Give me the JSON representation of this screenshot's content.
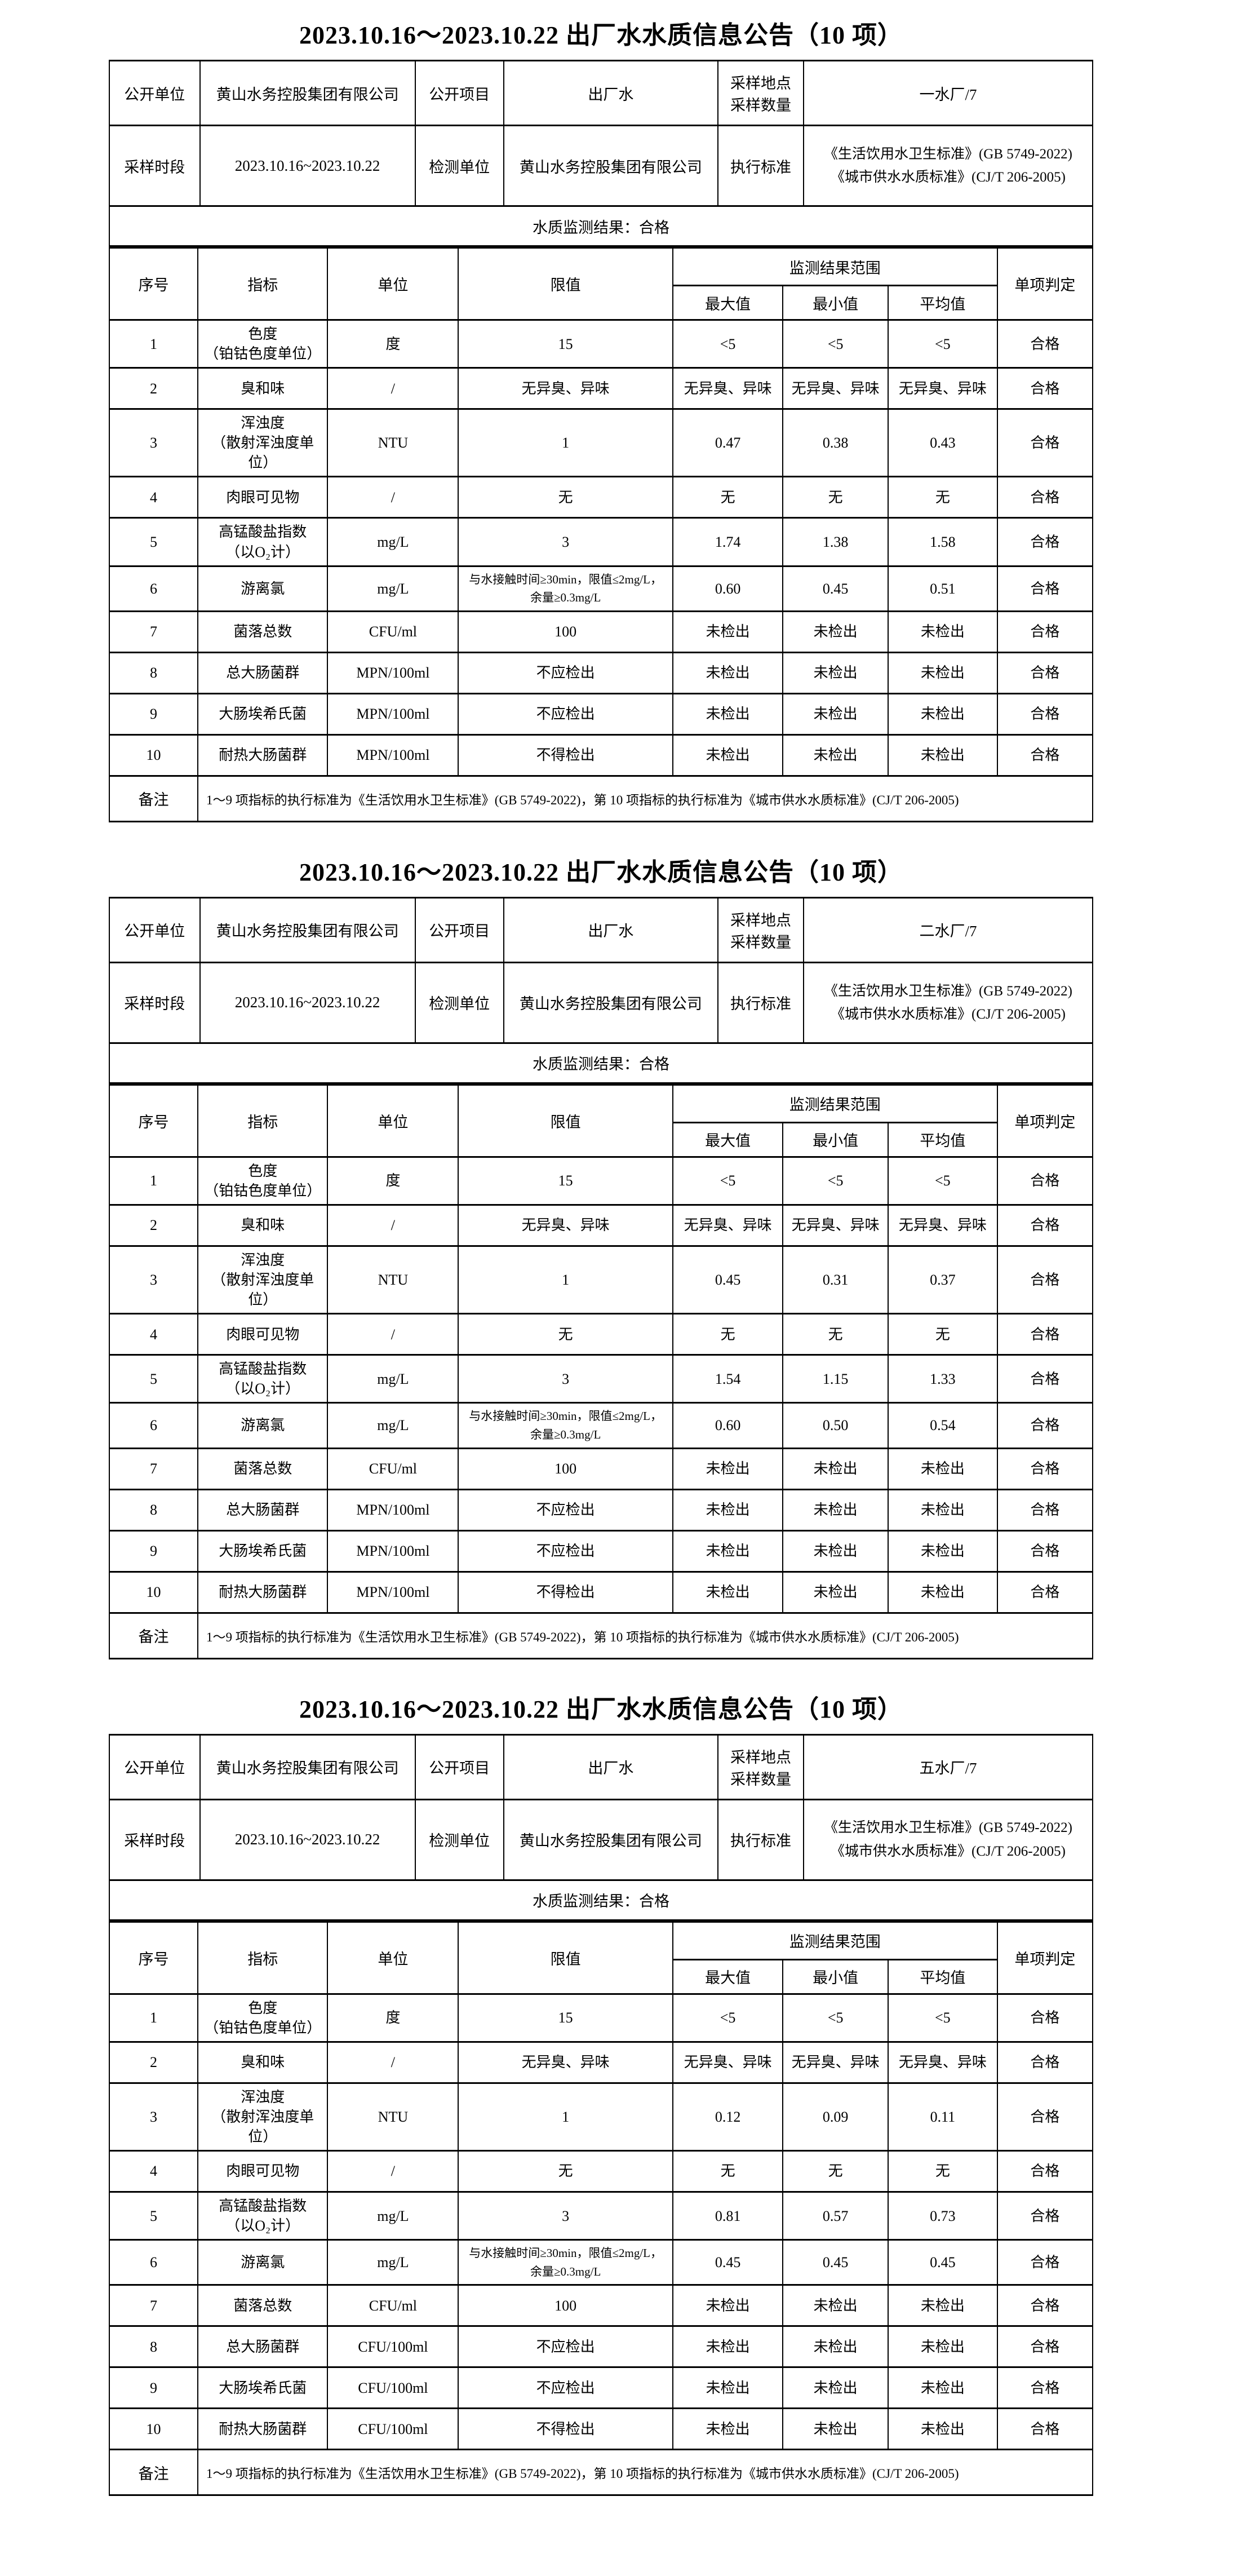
{
  "common": {
    "title": "2023.10.16～2023.10.22 出厂水水质信息公告（10 项）",
    "labels": {
      "publish_unit": "公开单位",
      "publish_item": "公开项目",
      "sampling_site": "采样地点\n采样数量",
      "sampling_period": "采样时段",
      "test_unit": "检测单位",
      "standard": "执行标准",
      "remark": "备注",
      "seq": "序号",
      "indicator": "指标",
      "unit": "单位",
      "limit": "限值",
      "result_range": "监测结果范围",
      "max": "最大值",
      "min": "最小值",
      "avg": "平均值",
      "judge": "单项判定"
    },
    "values": {
      "publish_unit": "黄山水务控股集团有限公司",
      "publish_item": "出厂水",
      "sampling_period": "2023.10.16~2023.10.22",
      "test_unit": "黄山水务控股集团有限公司",
      "standard": "《生活饮用水卫生标准》(GB 5749-2022)\n《城市供水水质标准》(CJ/T 206-2005)",
      "result_line": "水质监测结果：合格",
      "remark": "1～9 项指标的执行标准为《生活饮用水卫生标准》(GB 5749-2022)，第 10 项指标的执行标准为《城市供水水质标准》(CJ/T 206-2005)"
    }
  },
  "tables": [
    {
      "sampling_site": "一水厂/7",
      "rows": [
        [
          "1",
          "色度\n（铂钴色度单位）",
          "度",
          "15",
          "<5",
          "<5",
          "<5",
          "合格"
        ],
        [
          "2",
          "臭和味",
          "/",
          "无异臭、异味",
          "无异臭、异味",
          "无异臭、异味",
          "无异臭、异味",
          "合格"
        ],
        [
          "3",
          "浑浊度\n（散射浑浊度单位）",
          "NTU",
          "1",
          "0.47",
          "0.38",
          "0.43",
          "合格"
        ],
        [
          "4",
          "肉眼可见物",
          "/",
          "无",
          "无",
          "无",
          "无",
          "合格"
        ],
        [
          "5",
          "高锰酸盐指数\n（以O₂计）",
          "mg/L",
          "3",
          "1.74",
          "1.38",
          "1.58",
          "合格"
        ],
        [
          "6",
          "游离氯",
          "mg/L",
          "与水接触时间≥30min，限值≤2mg/L，余量≥0.3mg/L",
          "0.60",
          "0.45",
          "0.51",
          "合格"
        ],
        [
          "7",
          "菌落总数",
          "CFU/ml",
          "100",
          "未检出",
          "未检出",
          "未检出",
          "合格"
        ],
        [
          "8",
          "总大肠菌群",
          "MPN/100ml",
          "不应检出",
          "未检出",
          "未检出",
          "未检出",
          "合格"
        ],
        [
          "9",
          "大肠埃希氏菌",
          "MPN/100ml",
          "不应检出",
          "未检出",
          "未检出",
          "未检出",
          "合格"
        ],
        [
          "10",
          "耐热大肠菌群",
          "MPN/100ml",
          "不得检出",
          "未检出",
          "未检出",
          "未检出",
          "合格"
        ]
      ]
    },
    {
      "sampling_site": "二水厂/7",
      "rows": [
        [
          "1",
          "色度\n（铂钴色度单位）",
          "度",
          "15",
          "<5",
          "<5",
          "<5",
          "合格"
        ],
        [
          "2",
          "臭和味",
          "/",
          "无异臭、异味",
          "无异臭、异味",
          "无异臭、异味",
          "无异臭、异味",
          "合格"
        ],
        [
          "3",
          "浑浊度\n（散射浑浊度单位）",
          "NTU",
          "1",
          "0.45",
          "0.31",
          "0.37",
          "合格"
        ],
        [
          "4",
          "肉眼可见物",
          "/",
          "无",
          "无",
          "无",
          "无",
          "合格"
        ],
        [
          "5",
          "高锰酸盐指数\n（以O₂计）",
          "mg/L",
          "3",
          "1.54",
          "1.15",
          "1.33",
          "合格"
        ],
        [
          "6",
          "游离氯",
          "mg/L",
          "与水接触时间≥30min，限值≤2mg/L，余量≥0.3mg/L",
          "0.60",
          "0.50",
          "0.54",
          "合格"
        ],
        [
          "7",
          "菌落总数",
          "CFU/ml",
          "100",
          "未检出",
          "未检出",
          "未检出",
          "合格"
        ],
        [
          "8",
          "总大肠菌群",
          "MPN/100ml",
          "不应检出",
          "未检出",
          "未检出",
          "未检出",
          "合格"
        ],
        [
          "9",
          "大肠埃希氏菌",
          "MPN/100ml",
          "不应检出",
          "未检出",
          "未检出",
          "未检出",
          "合格"
        ],
        [
          "10",
          "耐热大肠菌群",
          "MPN/100ml",
          "不得检出",
          "未检出",
          "未检出",
          "未检出",
          "合格"
        ]
      ]
    },
    {
      "sampling_site": "五水厂/7",
      "rows": [
        [
          "1",
          "色度\n（铂钴色度单位）",
          "度",
          "15",
          "<5",
          "<5",
          "<5",
          "合格"
        ],
        [
          "2",
          "臭和味",
          "/",
          "无异臭、异味",
          "无异臭、异味",
          "无异臭、异味",
          "无异臭、异味",
          "合格"
        ],
        [
          "3",
          "浑浊度\n（散射浑浊度单位）",
          "NTU",
          "1",
          "0.12",
          "0.09",
          "0.11",
          "合格"
        ],
        [
          "4",
          "肉眼可见物",
          "/",
          "无",
          "无",
          "无",
          "无",
          "合格"
        ],
        [
          "5",
          "高锰酸盐指数\n（以O₂计）",
          "mg/L",
          "3",
          "0.81",
          "0.57",
          "0.73",
          "合格"
        ],
        [
          "6",
          "游离氯",
          "mg/L",
          "与水接触时间≥30min，限值≤2mg/L，余量≥0.3mg/L",
          "0.45",
          "0.45",
          "0.45",
          "合格"
        ],
        [
          "7",
          "菌落总数",
          "CFU/ml",
          "100",
          "未检出",
          "未检出",
          "未检出",
          "合格"
        ],
        [
          "8",
          "总大肠菌群",
          "CFU/100ml",
          "不应检出",
          "未检出",
          "未检出",
          "未检出",
          "合格"
        ],
        [
          "9",
          "大肠埃希氏菌",
          "CFU/100ml",
          "不应检出",
          "未检出",
          "未检出",
          "未检出",
          "合格"
        ],
        [
          "10",
          "耐热大肠菌群",
          "CFU/100ml",
          "不得检出",
          "未检出",
          "未检出",
          "未检出",
          "合格"
        ]
      ]
    }
  ]
}
